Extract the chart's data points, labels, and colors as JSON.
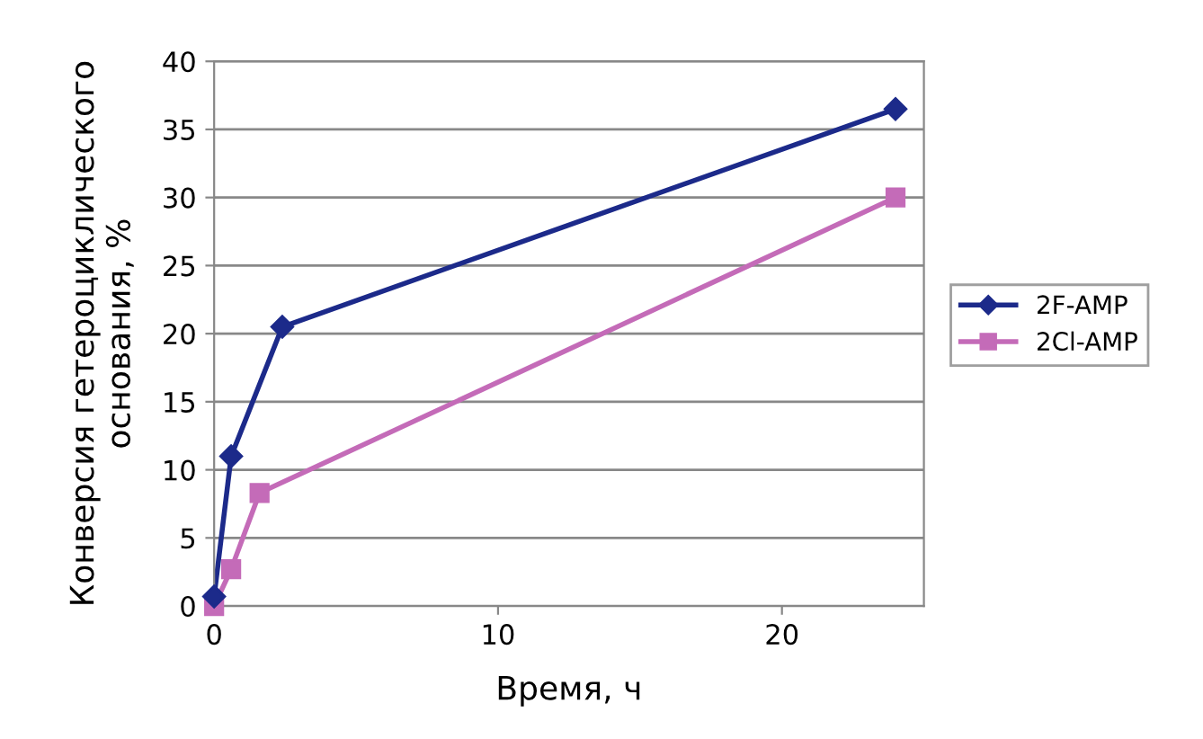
{
  "chart_data": {
    "type": "line",
    "xlabel": "Время, ч",
    "ylabel": "Конверсия гетероциклического\nоснования, %",
    "xlim": [
      0,
      25
    ],
    "xticks": [
      0,
      10,
      20
    ],
    "ylim": [
      0,
      40
    ],
    "yticks": [
      0,
      5,
      10,
      15,
      20,
      25,
      30,
      35,
      40
    ],
    "grid": "y",
    "legend": "right",
    "series": [
      {
        "name": "2F-AMP",
        "color": "#1c2a8a",
        "marker": "diamond",
        "x": [
          0,
          0.6,
          2.4,
          24
        ],
        "values": [
          0.7,
          11,
          20.5,
          36.5
        ]
      },
      {
        "name": "2Cl-AMP",
        "color": "#c46bb8",
        "marker": "square",
        "x": [
          0,
          0.6,
          1.6,
          24
        ],
        "values": [
          0,
          2.7,
          8.3,
          30
        ]
      }
    ]
  }
}
